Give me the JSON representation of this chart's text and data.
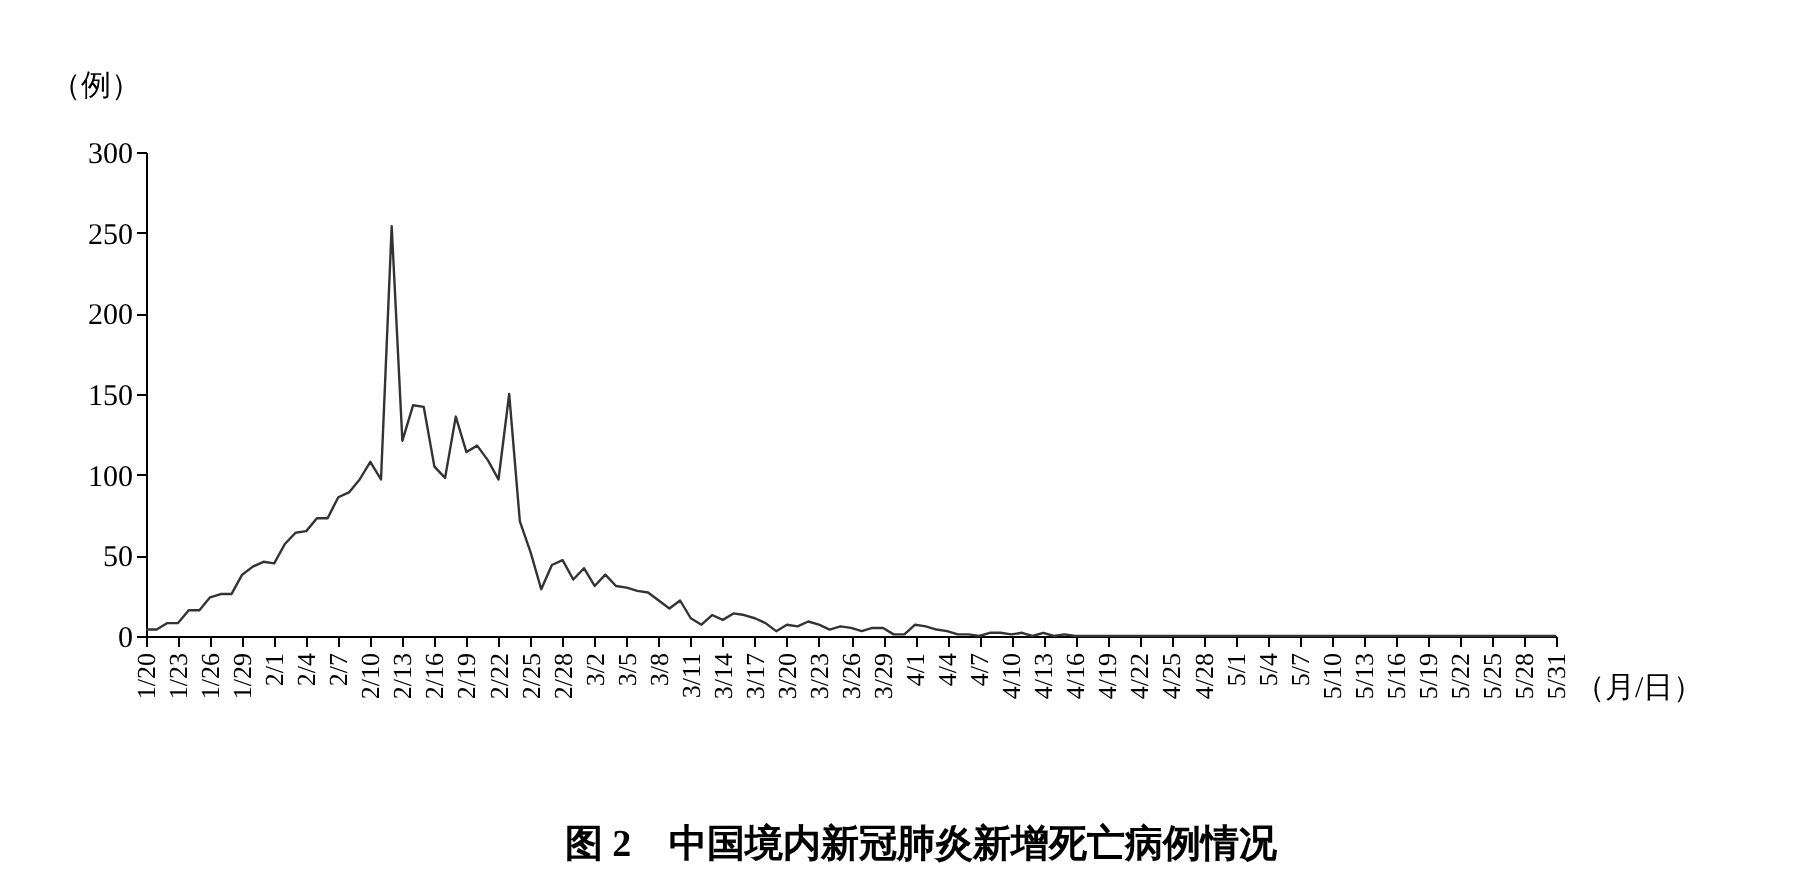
{
  "chart_data": {
    "type": "line",
    "title": "图 2　中国境内新冠肺炎新增死亡病例情况",
    "ylabel": "（例）",
    "xlabel": "（月/日）",
    "categories": [
      "1/20",
      null,
      null,
      "1/23",
      null,
      null,
      "1/26",
      null,
      null,
      "1/29",
      null,
      null,
      "2/1",
      null,
      null,
      "2/4",
      null,
      null,
      "2/7",
      null,
      null,
      "2/10",
      null,
      null,
      "2/13",
      null,
      null,
      "2/16",
      null,
      null,
      "2/19",
      null,
      null,
      "2/22",
      null,
      null,
      "2/25",
      null,
      null,
      "2/28",
      null,
      null,
      "3/2",
      null,
      null,
      "3/5",
      null,
      null,
      "3/8",
      null,
      null,
      "3/11",
      null,
      null,
      "3/14",
      null,
      null,
      "3/17",
      null,
      null,
      "3/20",
      null,
      null,
      "3/23",
      null,
      null,
      "3/26",
      null,
      null,
      "3/29",
      null,
      null,
      "4/1",
      null,
      null,
      "4/4",
      null,
      null,
      "4/7",
      null,
      null,
      "4/10",
      null,
      null,
      "4/13",
      null,
      null,
      "4/16",
      null,
      null,
      "4/19",
      null,
      null,
      "4/22",
      null,
      null,
      "4/25",
      null,
      null,
      "4/28",
      null,
      null,
      "5/1",
      null,
      null,
      "5/4",
      null,
      null,
      "5/7",
      null,
      null,
      "5/10",
      null,
      null,
      "5/13",
      null,
      null,
      "5/16",
      null,
      null,
      "5/19",
      null,
      null,
      "5/22",
      null,
      null,
      "5/25",
      null,
      null,
      "5/28",
      null,
      null,
      "5/31"
    ],
    "series": [
      {
        "color": "#333333",
        "values": [
          4,
          4,
          8,
          8,
          16,
          16,
          24,
          26,
          26,
          38,
          43,
          46,
          45,
          57,
          64,
          65,
          73,
          73,
          86,
          89,
          97,
          108,
          97,
          254,
          121,
          143,
          142,
          105,
          98,
          136,
          114,
          118,
          109,
          97,
          150,
          71,
          52,
          29,
          44,
          47,
          35,
          42,
          31,
          38,
          31,
          30,
          28,
          27,
          22,
          17,
          22,
          11,
          7,
          13,
          10,
          14,
          13,
          11,
          8,
          3,
          7,
          6,
          9,
          7,
          4,
          6,
          5,
          3,
          5,
          5,
          1,
          1,
          7,
          6,
          4,
          3,
          1,
          1,
          0,
          2,
          2,
          1,
          2,
          0,
          2,
          0,
          1,
          0,
          0,
          0,
          0,
          0,
          0,
          0,
          0,
          0,
          0,
          0,
          0,
          0,
          0,
          0,
          0,
          0,
          0,
          0,
          0,
          0,
          0,
          0,
          0,
          0,
          0,
          0,
          0,
          0,
          0,
          0,
          0,
          0,
          0,
          0,
          0,
          0,
          0,
          0,
          0,
          0,
          0,
          0,
          0,
          0,
          0
        ]
      }
    ],
    "ylim": [
      0,
      300
    ],
    "yticks": [
      0,
      50,
      100,
      150,
      200,
      250,
      300
    ],
    "grid": false,
    "marker": "none",
    "line_style": "solid"
  }
}
